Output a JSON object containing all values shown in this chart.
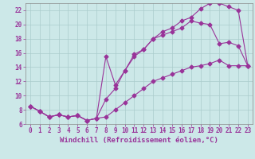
{
  "title": "",
  "xlabel": "Windchill (Refroidissement éolien,°C)",
  "bg_color": "#cce8e8",
  "line_color": "#993399",
  "grid_color": "#aacccc",
  "xlim": [
    -0.5,
    23.5
  ],
  "ylim": [
    6,
    23
  ],
  "xticks": [
    0,
    1,
    2,
    3,
    4,
    5,
    6,
    7,
    8,
    9,
    10,
    11,
    12,
    13,
    14,
    15,
    16,
    17,
    18,
    19,
    20,
    21,
    22,
    23
  ],
  "yticks": [
    6,
    8,
    10,
    12,
    14,
    16,
    18,
    20,
    22
  ],
  "line1_x": [
    0,
    1,
    2,
    3,
    4,
    5,
    6,
    7,
    8,
    9,
    10,
    11,
    12,
    13,
    14,
    15,
    16,
    17,
    18,
    19,
    20,
    21,
    22,
    23
  ],
  "line1_y": [
    8.5,
    7.8,
    7.0,
    7.3,
    7.0,
    7.2,
    6.5,
    6.8,
    9.5,
    11.0,
    13.5,
    15.5,
    16.5,
    18.0,
    19.0,
    19.5,
    20.5,
    21.0,
    22.2,
    23.0,
    23.0,
    22.5,
    22.0,
    14.2
  ],
  "line2_x": [
    0,
    1,
    2,
    3,
    4,
    5,
    6,
    7,
    8,
    9,
    10,
    11,
    12,
    13,
    14,
    15,
    16,
    17,
    18,
    19,
    20,
    21,
    22,
    23
  ],
  "line2_y": [
    8.5,
    7.8,
    7.0,
    7.3,
    7.0,
    7.2,
    6.5,
    6.8,
    7.0,
    8.0,
    9.0,
    10.0,
    11.0,
    12.0,
    12.5,
    13.0,
    13.5,
    14.0,
    14.2,
    14.5,
    15.0,
    14.2,
    14.2,
    14.2
  ],
  "line3_x": [
    0,
    1,
    2,
    3,
    4,
    5,
    6,
    7,
    8,
    9,
    10,
    11,
    12,
    13,
    14,
    15,
    16,
    17,
    18,
    19,
    20,
    21,
    22,
    23
  ],
  "line3_y": [
    8.5,
    7.8,
    7.0,
    7.3,
    7.0,
    7.2,
    6.5,
    6.8,
    15.5,
    11.5,
    13.5,
    15.8,
    16.5,
    18.0,
    18.5,
    19.0,
    19.5,
    20.5,
    20.2,
    20.0,
    17.3,
    17.5,
    17.0,
    14.2
  ],
  "fontsize_label": 6.5,
  "fontsize_tick": 5.5
}
